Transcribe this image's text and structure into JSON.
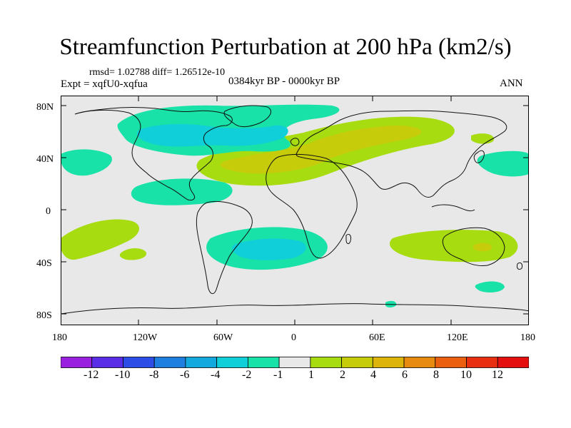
{
  "title": "Streamfunction Perturbation at 200 hPa (km2/s)",
  "stats": "rmsd= 1.02788 diff= 1.26512e-10",
  "experiment": "Expt = xqfU0-xqfua",
  "period": "0384kyr BP - 0000kyr BP",
  "season": "ANN",
  "lat_labels": [
    "80N",
    "40N",
    "0",
    "40S",
    "80S"
  ],
  "lon_labels": [
    "180",
    "120W",
    "60W",
    "0",
    "60E",
    "120E",
    "180"
  ],
  "colorbar": {
    "labels": [
      "-12",
      "-10",
      "-8",
      "-6",
      "-4",
      "-2",
      "-1",
      "1",
      "2",
      "4",
      "6",
      "8",
      "10",
      "12"
    ],
    "colors": [
      "#9a20e0",
      "#5a2ee6",
      "#2c4ee6",
      "#1f7fe0",
      "#14a9de",
      "#10cfd8",
      "#18e2a8",
      "#e8e8e8",
      "#a6dc10",
      "#c6cc0a",
      "#dcb40a",
      "#e68a10",
      "#ea6010",
      "#e83010",
      "#e41010"
    ]
  }
}
